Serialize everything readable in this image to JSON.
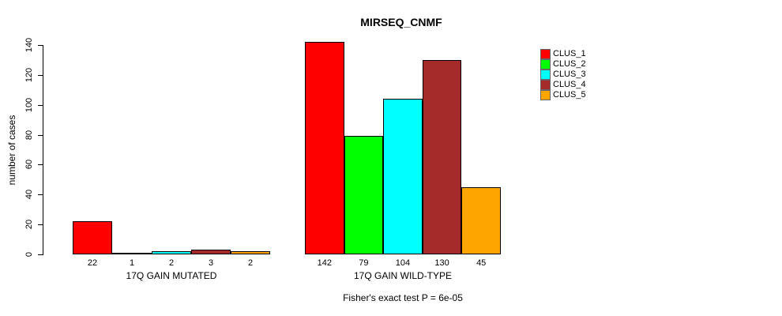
{
  "chart_data": {
    "type": "bar",
    "title": "MIRSEQ_CNMF",
    "ylabel": "number of cases",
    "xlabel": "Fisher's exact test P = 6e-05",
    "categories": [
      "17Q GAIN MUTATED",
      "17Q GAIN WILD-TYPE"
    ],
    "series": [
      {
        "name": "CLUS_1",
        "color": "#FF0000",
        "values": [
          22,
          142
        ]
      },
      {
        "name": "CLUS_2",
        "color": "#00FF00",
        "values": [
          1,
          79
        ]
      },
      {
        "name": "CLUS_3",
        "color": "#00FFFF",
        "values": [
          2,
          104
        ]
      },
      {
        "name": "CLUS_4",
        "color": "#A52A2A",
        "values": [
          3,
          130
        ]
      },
      {
        "name": "CLUS_5",
        "color": "#FFA500",
        "values": [
          2,
          45
        ]
      }
    ],
    "ylim": [
      0,
      140
    ],
    "yticks": [
      0,
      20,
      40,
      60,
      80,
      100,
      120,
      140
    ],
    "bar_value_labels_shown": true,
    "legend_position": "top-right",
    "grid": false,
    "background": "#FFFFFF",
    "bar_border_color": "#000000"
  }
}
